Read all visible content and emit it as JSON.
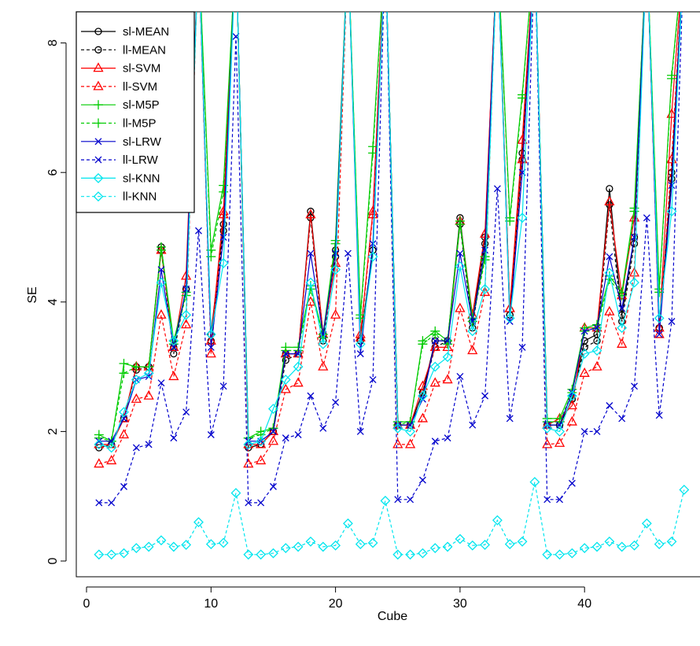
{
  "chart_data": {
    "type": "line",
    "title": "",
    "xlabel": "Cube",
    "ylabel": "SE",
    "xlim": [
      0,
      48.5
    ],
    "ylim": [
      0,
      8.5
    ],
    "x_ticks": [
      0,
      10,
      20,
      30,
      40
    ],
    "y_ticks": [
      0,
      2,
      4,
      6,
      8
    ],
    "grid": false,
    "legend_position": "top-left",
    "x": [
      1,
      2,
      3,
      4,
      5,
      6,
      7,
      8,
      9,
      10,
      11,
      12,
      13,
      14,
      15,
      16,
      17,
      18,
      19,
      20,
      21,
      22,
      23,
      24,
      25,
      26,
      27,
      28,
      29,
      30,
      31,
      32,
      33,
      34,
      35,
      36,
      37,
      38,
      39,
      40,
      41,
      42,
      43,
      44,
      45,
      46,
      47,
      48
    ],
    "series": [
      {
        "name": "sl-MEAN",
        "color": "#000000",
        "dashed": false,
        "marker": "circle",
        "values": [
          1.75,
          1.8,
          2.2,
          3.0,
          3.0,
          4.85,
          3.3,
          4.2,
          9.5,
          3.5,
          5.2,
          9.5,
          1.75,
          1.8,
          2.0,
          3.2,
          3.2,
          5.4,
          3.5,
          4.8,
          9.5,
          3.4,
          4.8,
          9.5,
          2.1,
          2.1,
          2.6,
          3.4,
          3.4,
          5.3,
          3.7,
          5.0,
          9.5,
          3.8,
          6.3,
          9.5,
          2.1,
          2.1,
          2.5,
          3.4,
          3.5,
          5.75,
          3.8,
          5.0,
          9.5,
          3.6,
          6.0,
          9.5
        ]
      },
      {
        "name": "ll-MEAN",
        "color": "#000000",
        "dashed": true,
        "marker": "circle",
        "values": [
          1.8,
          1.8,
          2.2,
          2.95,
          3.0,
          4.8,
          3.2,
          4.2,
          9.5,
          3.4,
          5.1,
          9.5,
          1.8,
          1.8,
          2.0,
          3.1,
          3.2,
          5.3,
          3.4,
          4.7,
          9.5,
          3.4,
          4.8,
          9.5,
          2.1,
          2.1,
          2.6,
          3.3,
          3.4,
          5.2,
          3.6,
          4.9,
          9.5,
          3.8,
          6.2,
          9.5,
          2.1,
          2.1,
          2.5,
          3.3,
          3.4,
          5.5,
          3.7,
          4.9,
          9.5,
          3.6,
          5.9,
          9.5
        ]
      },
      {
        "name": "sl-SVM",
        "color": "#ff0000",
        "dashed": false,
        "marker": "triangle",
        "values": [
          1.8,
          1.8,
          2.2,
          3.0,
          3.0,
          4.8,
          3.3,
          4.4,
          9.5,
          3.4,
          5.4,
          9.5,
          1.8,
          1.8,
          2.0,
          3.2,
          3.2,
          5.35,
          3.5,
          4.6,
          9.5,
          3.5,
          5.4,
          9.5,
          2.1,
          2.1,
          2.7,
          3.3,
          3.3,
          5.25,
          3.8,
          5.05,
          9.5,
          3.9,
          6.5,
          9.5,
          2.1,
          2.2,
          2.4,
          3.6,
          3.6,
          5.55,
          4.1,
          5.3,
          9.5,
          3.6,
          6.9,
          9.5
        ]
      },
      {
        "name": "ll-SVM",
        "color": "#ff0000",
        "dashed": true,
        "marker": "triangle",
        "values": [
          1.5,
          1.55,
          1.95,
          2.5,
          2.55,
          3.8,
          2.85,
          3.65,
          9.5,
          3.2,
          5.35,
          9.5,
          1.5,
          1.55,
          1.85,
          2.65,
          2.75,
          4.0,
          3.0,
          3.8,
          9.5,
          3.45,
          5.35,
          9.5,
          1.8,
          1.8,
          2.2,
          2.75,
          2.8,
          3.9,
          3.25,
          4.15,
          9.5,
          3.9,
          6.2,
          9.5,
          1.8,
          1.82,
          2.15,
          2.9,
          3.0,
          3.85,
          3.35,
          4.45,
          9.5,
          3.5,
          6.2,
          9.5
        ]
      },
      {
        "name": "sl-M5P",
        "color": "#00cc00",
        "dashed": false,
        "marker": "plus",
        "values": [
          1.95,
          1.85,
          3.05,
          3.0,
          3.0,
          4.85,
          3.4,
          4.15,
          9.5,
          4.8,
          5.8,
          9.5,
          1.9,
          2.0,
          2.05,
          3.3,
          3.3,
          4.25,
          3.5,
          4.95,
          9.5,
          3.8,
          6.4,
          9.5,
          2.15,
          2.15,
          3.4,
          3.55,
          3.4,
          5.25,
          3.75,
          4.7,
          9.5,
          5.3,
          7.2,
          9.5,
          2.2,
          2.2,
          2.65,
          3.6,
          3.65,
          4.4,
          4.15,
          5.45,
          9.5,
          4.2,
          7.5,
          9.5
        ]
      },
      {
        "name": "ll-M5P",
        "color": "#00cc00",
        "dashed": true,
        "marker": "plus",
        "values": [
          1.9,
          1.85,
          2.9,
          3.0,
          3.0,
          4.8,
          3.35,
          4.1,
          9.5,
          4.7,
          5.7,
          9.5,
          1.9,
          1.95,
          2.05,
          3.25,
          3.25,
          4.2,
          3.45,
          4.9,
          9.5,
          3.75,
          6.3,
          9.5,
          2.1,
          2.15,
          3.35,
          3.5,
          3.35,
          5.2,
          3.7,
          4.65,
          9.5,
          5.25,
          7.15,
          9.5,
          2.15,
          2.15,
          2.6,
          3.55,
          3.6,
          4.35,
          4.1,
          5.4,
          9.5,
          4.15,
          7.45,
          9.5
        ]
      },
      {
        "name": "sl-LRW",
        "color": "#0000cc",
        "dashed": false,
        "marker": "x",
        "values": [
          1.85,
          1.85,
          2.2,
          2.8,
          2.85,
          4.5,
          3.3,
          4.2,
          9.5,
          3.3,
          5.0,
          9.5,
          1.85,
          1.85,
          2.0,
          3.2,
          3.2,
          4.75,
          3.5,
          4.75,
          9.5,
          3.2,
          4.9,
          9.5,
          2.1,
          2.1,
          2.5,
          3.4,
          3.4,
          4.75,
          3.7,
          4.8,
          9.5,
          3.7,
          6.0,
          9.5,
          2.1,
          2.1,
          2.6,
          3.55,
          3.6,
          4.7,
          3.9,
          5.0,
          9.5,
          3.5,
          5.8,
          9.5
        ]
      },
      {
        "name": "ll-LRW",
        "color": "#0000cc",
        "dashed": true,
        "marker": "x",
        "values": [
          0.9,
          0.9,
          1.15,
          1.75,
          1.8,
          2.75,
          1.9,
          2.3,
          5.1,
          1.95,
          2.7,
          8.1,
          0.9,
          0.9,
          1.15,
          1.9,
          1.95,
          2.55,
          2.05,
          2.45,
          4.75,
          2.0,
          2.8,
          9.5,
          0.95,
          0.95,
          1.25,
          1.85,
          1.9,
          2.85,
          2.1,
          2.55,
          5.75,
          2.2,
          3.3,
          9.5,
          0.95,
          0.95,
          1.2,
          2.0,
          2.0,
          2.4,
          2.2,
          2.7,
          5.3,
          2.25,
          3.7,
          9.5
        ]
      },
      {
        "name": "sl-KNN",
        "color": "#00e5ee",
        "dashed": false,
        "marker": "diamond",
        "values": [
          1.8,
          1.75,
          2.3,
          2.8,
          2.9,
          4.3,
          3.4,
          3.8,
          9.5,
          3.5,
          4.6,
          9.5,
          1.8,
          1.85,
          2.35,
          2.8,
          3.0,
          4.3,
          3.35,
          4.5,
          9.5,
          3.35,
          4.7,
          9.5,
          2.05,
          2.0,
          2.55,
          3.0,
          3.15,
          4.55,
          3.55,
          4.2,
          9.5,
          3.75,
          5.3,
          9.5,
          2.05,
          2.0,
          2.55,
          3.2,
          3.25,
          4.45,
          3.6,
          4.3,
          9.5,
          3.75,
          5.4,
          9.5
        ]
      },
      {
        "name": "ll-KNN",
        "color": "#00e5ee",
        "dashed": true,
        "marker": "diamond",
        "values": [
          0.1,
          0.1,
          0.12,
          0.2,
          0.22,
          0.32,
          0.22,
          0.25,
          0.6,
          0.26,
          0.28,
          1.05,
          0.1,
          0.1,
          0.12,
          0.2,
          0.22,
          0.3,
          0.22,
          0.24,
          0.58,
          0.26,
          0.28,
          0.93,
          0.1,
          0.1,
          0.12,
          0.2,
          0.22,
          0.34,
          0.24,
          0.25,
          0.63,
          0.26,
          0.3,
          1.22,
          0.1,
          0.1,
          0.12,
          0.2,
          0.22,
          0.3,
          0.22,
          0.24,
          0.58,
          0.26,
          0.3,
          1.1
        ]
      }
    ]
  }
}
